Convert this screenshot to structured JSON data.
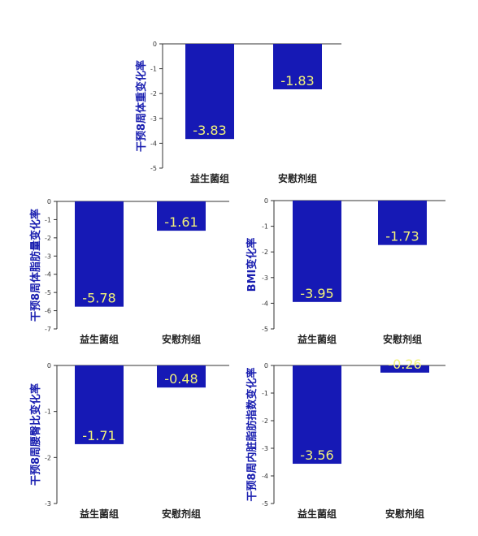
{
  "colors": {
    "bar": "#1619b5",
    "label": "#f2f27a",
    "axis": "#333333",
    "ylabel": "#1a1fb0"
  },
  "chart_data": [
    {
      "type": "bar",
      "ylabel": "干预8周体重变化率",
      "categories": [
        "益生菌组",
        "安慰剂组"
      ],
      "values": [
        -3.83,
        -1.83
      ],
      "labels": [
        "-3.83",
        "-1.83"
      ],
      "ylim": [
        -5,
        0
      ],
      "yticks": [
        0,
        -1,
        -2,
        -3,
        -4,
        -5
      ],
      "ytick_labels": [
        "0",
        "-1",
        "-2",
        "-3",
        "-4",
        "-5"
      ]
    },
    {
      "type": "bar",
      "ylabel": "干预8周体脂肪量变化率",
      "categories": [
        "益生菌组",
        "安慰剂组"
      ],
      "values": [
        -5.78,
        -1.61
      ],
      "labels": [
        "-5.78",
        "-1.61"
      ],
      "ylim": [
        -7,
        0
      ],
      "yticks": [
        0,
        -1,
        -2,
        -3,
        -4,
        -5,
        -6,
        -7
      ],
      "ytick_labels": [
        "0",
        "-1",
        "-2",
        "-3",
        "-4",
        "-5",
        "-6",
        "-7"
      ]
    },
    {
      "type": "bar",
      "ylabel": "BMI变化率",
      "categories": [
        "益生菌组",
        "安慰剂组"
      ],
      "values": [
        -3.95,
        -1.73
      ],
      "labels": [
        "-3.95",
        "-1.73"
      ],
      "ylim": [
        -5,
        0
      ],
      "yticks": [
        0,
        -1,
        -2,
        -3,
        -4,
        -5
      ],
      "ytick_labels": [
        "0",
        "-1",
        "-2",
        "-3",
        "-4",
        "-5"
      ]
    },
    {
      "type": "bar",
      "ylabel": "干预8周腰臀比变化率",
      "categories": [
        "益生菌组",
        "安慰剂组"
      ],
      "values": [
        -1.71,
        -0.48
      ],
      "labels": [
        "-1.71",
        "-0.48"
      ],
      "ylim": [
        -3,
        0
      ],
      "yticks": [
        0,
        -1,
        -2,
        -3
      ],
      "ytick_labels": [
        "0",
        "-1",
        "-2",
        "-3"
      ]
    },
    {
      "type": "bar",
      "ylabel": "干预8周内脏脂肪指数变化率",
      "categories": [
        "益生菌组",
        "安慰剂组"
      ],
      "values": [
        -3.56,
        -0.26
      ],
      "labels": [
        "-3.56",
        "-0.26"
      ],
      "ylim": [
        -5,
        0
      ],
      "yticks": [
        0,
        -1,
        -2,
        -3,
        -4,
        -5
      ],
      "ytick_labels": [
        "0",
        "-1",
        "-2",
        "-3",
        "-4",
        "-5"
      ]
    }
  ]
}
